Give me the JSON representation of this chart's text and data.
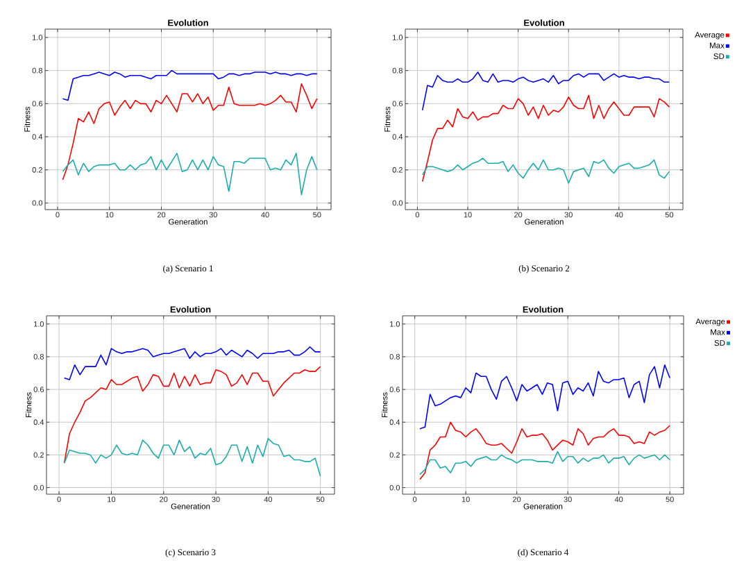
{
  "chart_data": [
    {
      "type": "line",
      "title": "Evolution",
      "xlabel": "Generation",
      "ylabel": "Fitness",
      "annotations": [
        "(a) Scenario 1"
      ],
      "x": [
        1,
        2,
        3,
        4,
        5,
        6,
        7,
        8,
        9,
        10,
        11,
        12,
        13,
        14,
        15,
        16,
        17,
        18,
        19,
        20,
        21,
        22,
        23,
        24,
        25,
        26,
        27,
        28,
        29,
        30,
        31,
        32,
        33,
        34,
        35,
        36,
        37,
        38,
        39,
        40,
        41,
        42,
        43,
        44,
        45,
        46,
        47,
        48,
        49,
        50
      ],
      "series": [
        {
          "color": "#ff0000",
          "values": [
            0.14,
            0.23,
            0.36,
            0.51,
            0.49,
            0.55,
            0.48,
            0.57,
            0.6,
            0.61,
            0.53,
            0.58,
            0.62,
            0.57,
            0.62,
            0.6,
            0.6,
            0.55,
            0.62,
            0.6,
            0.65,
            0.6,
            0.55,
            0.66,
            0.66,
            0.61,
            0.66,
            0.6,
            0.64,
            0.56,
            0.59,
            0.59,
            0.7,
            0.6,
            0.59,
            0.59,
            0.59,
            0.59,
            0.6,
            0.59,
            0.6,
            0.62,
            0.65,
            0.61,
            0.61,
            0.55,
            0.72,
            0.65,
            0.57,
            0.63
          ]
        },
        {
          "color": "#0000ff",
          "values": [
            0.63,
            0.62,
            0.75,
            0.76,
            0.77,
            0.77,
            0.78,
            0.79,
            0.78,
            0.77,
            0.79,
            0.78,
            0.76,
            0.77,
            0.77,
            0.77,
            0.76,
            0.75,
            0.77,
            0.77,
            0.77,
            0.8,
            0.78,
            0.78,
            0.78,
            0.78,
            0.78,
            0.78,
            0.78,
            0.78,
            0.75,
            0.76,
            0.78,
            0.78,
            0.77,
            0.78,
            0.78,
            0.79,
            0.79,
            0.79,
            0.78,
            0.79,
            0.78,
            0.78,
            0.77,
            0.78,
            0.78,
            0.77,
            0.78,
            0.78
          ]
        },
        {
          "color": "#1aadad",
          "values": [
            0.19,
            0.23,
            0.26,
            0.17,
            0.24,
            0.19,
            0.22,
            0.23,
            0.23,
            0.23,
            0.24,
            0.2,
            0.2,
            0.23,
            0.2,
            0.23,
            0.24,
            0.28,
            0.2,
            0.26,
            0.2,
            0.25,
            0.3,
            0.19,
            0.2,
            0.26,
            0.2,
            0.26,
            0.2,
            0.28,
            0.23,
            0.22,
            0.07,
            0.25,
            0.25,
            0.24,
            0.27,
            0.27,
            0.27,
            0.27,
            0.2,
            0.21,
            0.2,
            0.26,
            0.23,
            0.3,
            0.05,
            0.2,
            0.28,
            0.2
          ]
        }
      ],
      "xlim": [
        -2.4,
        52.7
      ],
      "ylim": [
        -0.04,
        1.05
      ],
      "xticks": [
        0,
        10,
        20,
        30,
        40,
        50
      ],
      "yticks": [
        {
          "value": 0,
          "label": "0.0"
        },
        {
          "value": 0.2,
          "label": "0.2"
        },
        {
          "value": 0.4,
          "label": "0.4"
        },
        {
          "value": 0.6,
          "label": "0.6"
        },
        {
          "value": 0.8,
          "label": "0.8"
        },
        {
          "value": 1,
          "label": "1.0"
        }
      ],
      "grid": true
    },
    {
      "type": "line",
      "title": "Evolution",
      "xlabel": "Generation",
      "ylabel": "Fitness",
      "annotations": [
        "(b) Scenario 2"
      ],
      "x": [
        1,
        2,
        3,
        4,
        5,
        6,
        7,
        8,
        9,
        10,
        11,
        12,
        13,
        14,
        15,
        16,
        17,
        18,
        19,
        20,
        21,
        22,
        23,
        24,
        25,
        26,
        27,
        28,
        29,
        30,
        31,
        32,
        33,
        34,
        35,
        36,
        37,
        38,
        39,
        40,
        41,
        42,
        43,
        44,
        45,
        46,
        47,
        48,
        49,
        50
      ],
      "series": [
        {
          "name": "Average",
          "color": "#ff0000",
          "values": [
            0.13,
            0.25,
            0.38,
            0.45,
            0.45,
            0.5,
            0.46,
            0.57,
            0.52,
            0.51,
            0.55,
            0.5,
            0.52,
            0.52,
            0.54,
            0.54,
            0.59,
            0.57,
            0.57,
            0.63,
            0.6,
            0.53,
            0.58,
            0.51,
            0.59,
            0.53,
            0.56,
            0.55,
            0.58,
            0.64,
            0.59,
            0.57,
            0.57,
            0.65,
            0.51,
            0.59,
            0.51,
            0.57,
            0.61,
            0.57,
            0.53,
            0.53,
            0.58,
            0.58,
            0.58,
            0.58,
            0.52,
            0.63,
            0.61,
            0.58
          ]
        },
        {
          "name": "Max",
          "color": "#0000ff",
          "values": [
            0.56,
            0.71,
            0.7,
            0.77,
            0.74,
            0.73,
            0.73,
            0.75,
            0.73,
            0.73,
            0.75,
            0.79,
            0.74,
            0.73,
            0.78,
            0.73,
            0.74,
            0.74,
            0.73,
            0.75,
            0.76,
            0.74,
            0.73,
            0.74,
            0.75,
            0.73,
            0.77,
            0.72,
            0.74,
            0.74,
            0.77,
            0.78,
            0.76,
            0.78,
            0.78,
            0.78,
            0.74,
            0.76,
            0.78,
            0.76,
            0.77,
            0.76,
            0.76,
            0.75,
            0.76,
            0.76,
            0.75,
            0.75,
            0.73,
            0.73
          ]
        },
        {
          "name": "SD",
          "color": "#1aadad",
          "values": [
            0.17,
            0.22,
            0.22,
            0.21,
            0.2,
            0.19,
            0.2,
            0.23,
            0.2,
            0.22,
            0.24,
            0.25,
            0.27,
            0.24,
            0.24,
            0.24,
            0.25,
            0.19,
            0.23,
            0.18,
            0.15,
            0.2,
            0.24,
            0.2,
            0.26,
            0.2,
            0.2,
            0.21,
            0.2,
            0.12,
            0.19,
            0.2,
            0.21,
            0.16,
            0.25,
            0.24,
            0.26,
            0.21,
            0.18,
            0.22,
            0.23,
            0.24,
            0.21,
            0.21,
            0.22,
            0.23,
            0.26,
            0.17,
            0.15,
            0.19
          ]
        }
      ],
      "xlim": [
        -2.4,
        52.7
      ],
      "ylim": [
        -0.04,
        1.05
      ],
      "xticks": [
        0,
        10,
        20,
        30,
        40,
        50
      ],
      "yticks": [
        {
          "value": 0,
          "label": "0.0"
        },
        {
          "value": 0.2,
          "label": "0.2"
        },
        {
          "value": 0.4,
          "label": "0.4"
        },
        {
          "value": 0.6,
          "label": "0.6"
        },
        {
          "value": 0.8,
          "label": "0.8"
        },
        {
          "value": 1,
          "label": "1.0"
        }
      ],
      "grid": true,
      "legend": "top right"
    },
    {
      "type": "line",
      "title": "Evolution",
      "xlabel": "Generation",
      "ylabel": "Fitness",
      "annotations": [
        "(c) Scenario 3"
      ],
      "x": [
        1,
        2,
        3,
        4,
        5,
        6,
        7,
        8,
        9,
        10,
        11,
        12,
        13,
        14,
        15,
        16,
        17,
        18,
        19,
        20,
        21,
        22,
        23,
        24,
        25,
        26,
        27,
        28,
        29,
        30,
        31,
        32,
        33,
        34,
        35,
        36,
        37,
        38,
        39,
        40,
        41,
        42,
        43,
        44,
        45,
        46,
        47,
        48,
        49,
        50
      ],
      "series": [
        {
          "color": "#ff0000",
          "values": [
            0.15,
            0.33,
            0.4,
            0.46,
            0.53,
            0.55,
            0.58,
            0.61,
            0.6,
            0.66,
            0.63,
            0.63,
            0.65,
            0.67,
            0.68,
            0.59,
            0.63,
            0.69,
            0.68,
            0.62,
            0.62,
            0.7,
            0.61,
            0.68,
            0.62,
            0.69,
            0.63,
            0.64,
            0.64,
            0.72,
            0.71,
            0.69,
            0.62,
            0.64,
            0.69,
            0.63,
            0.7,
            0.7,
            0.65,
            0.65,
            0.56,
            0.6,
            0.64,
            0.67,
            0.7,
            0.7,
            0.72,
            0.71,
            0.71,
            0.74
          ]
        },
        {
          "color": "#0000ff",
          "values": [
            0.67,
            0.66,
            0.75,
            0.69,
            0.74,
            0.74,
            0.74,
            0.81,
            0.75,
            0.85,
            0.83,
            0.82,
            0.83,
            0.83,
            0.84,
            0.85,
            0.84,
            0.8,
            0.81,
            0.82,
            0.82,
            0.83,
            0.84,
            0.85,
            0.79,
            0.83,
            0.8,
            0.82,
            0.82,
            0.83,
            0.85,
            0.81,
            0.84,
            0.82,
            0.8,
            0.84,
            0.82,
            0.79,
            0.82,
            0.82,
            0.82,
            0.83,
            0.83,
            0.84,
            0.81,
            0.81,
            0.83,
            0.86,
            0.83,
            0.83
          ]
        },
        {
          "color": "#1aadad",
          "values": [
            0.15,
            0.23,
            0.22,
            0.21,
            0.21,
            0.2,
            0.15,
            0.2,
            0.18,
            0.2,
            0.26,
            0.21,
            0.2,
            0.21,
            0.2,
            0.29,
            0.26,
            0.21,
            0.18,
            0.26,
            0.26,
            0.2,
            0.29,
            0.22,
            0.25,
            0.18,
            0.21,
            0.2,
            0.24,
            0.14,
            0.15,
            0.19,
            0.26,
            0.26,
            0.16,
            0.25,
            0.15,
            0.26,
            0.19,
            0.3,
            0.27,
            0.26,
            0.19,
            0.2,
            0.17,
            0.17,
            0.16,
            0.16,
            0.18,
            0.07
          ]
        }
      ],
      "xlim": [
        -2.4,
        52.7
      ],
      "ylim": [
        -0.04,
        1.05
      ],
      "xticks": [
        0,
        10,
        20,
        30,
        40,
        50
      ],
      "yticks": [
        {
          "value": 0,
          "label": "0.0"
        },
        {
          "value": 0.2,
          "label": "0.2"
        },
        {
          "value": 0.4,
          "label": "0.4"
        },
        {
          "value": 0.6,
          "label": "0.6"
        },
        {
          "value": 0.8,
          "label": "0.8"
        },
        {
          "value": 1,
          "label": "1.0"
        }
      ],
      "grid": true
    },
    {
      "type": "line",
      "title": "Evolution",
      "xlabel": "Generation",
      "ylabel": "Fitness",
      "annotations": [
        "(d) Scenario 4"
      ],
      "x": [
        1,
        2,
        3,
        4,
        5,
        6,
        7,
        8,
        9,
        10,
        11,
        12,
        13,
        14,
        15,
        16,
        17,
        18,
        19,
        20,
        21,
        22,
        23,
        24,
        25,
        26,
        27,
        28,
        29,
        30,
        31,
        32,
        33,
        34,
        35,
        36,
        37,
        38,
        39,
        40,
        41,
        42,
        43,
        44,
        45,
        46,
        47,
        48,
        49,
        50
      ],
      "series": [
        {
          "name": "Average",
          "color": "#ff0000",
          "values": [
            0.05,
            0.09,
            0.23,
            0.26,
            0.31,
            0.31,
            0.4,
            0.35,
            0.34,
            0.31,
            0.34,
            0.36,
            0.32,
            0.27,
            0.26,
            0.26,
            0.27,
            0.24,
            0.21,
            0.28,
            0.36,
            0.31,
            0.32,
            0.32,
            0.33,
            0.29,
            0.23,
            0.26,
            0.29,
            0.28,
            0.26,
            0.36,
            0.33,
            0.26,
            0.3,
            0.31,
            0.31,
            0.34,
            0.36,
            0.32,
            0.32,
            0.31,
            0.27,
            0.28,
            0.27,
            0.34,
            0.32,
            0.34,
            0.35,
            0.38
          ]
        },
        {
          "name": "Max",
          "color": "#0000ff",
          "values": [
            0.36,
            0.37,
            0.57,
            0.5,
            0.51,
            0.53,
            0.55,
            0.56,
            0.55,
            0.61,
            0.58,
            0.7,
            0.68,
            0.68,
            0.6,
            0.54,
            0.65,
            0.68,
            0.61,
            0.53,
            0.63,
            0.59,
            0.61,
            0.63,
            0.57,
            0.64,
            0.63,
            0.47,
            0.64,
            0.65,
            0.57,
            0.61,
            0.59,
            0.64,
            0.56,
            0.71,
            0.65,
            0.64,
            0.66,
            0.66,
            0.67,
            0.55,
            0.63,
            0.65,
            0.52,
            0.69,
            0.74,
            0.61,
            0.75,
            0.67
          ]
        },
        {
          "name": "SD",
          "color": "#1aadad",
          "values": [
            0.08,
            0.11,
            0.17,
            0.17,
            0.12,
            0.13,
            0.09,
            0.15,
            0.15,
            0.16,
            0.13,
            0.17,
            0.18,
            0.19,
            0.17,
            0.17,
            0.2,
            0.18,
            0.17,
            0.15,
            0.17,
            0.17,
            0.17,
            0.16,
            0.16,
            0.16,
            0.15,
            0.22,
            0.16,
            0.19,
            0.19,
            0.15,
            0.18,
            0.16,
            0.18,
            0.18,
            0.2,
            0.15,
            0.18,
            0.18,
            0.19,
            0.14,
            0.18,
            0.2,
            0.18,
            0.19,
            0.2,
            0.17,
            0.2,
            0.17
          ]
        }
      ],
      "xlim": [
        -2.4,
        52.7
      ],
      "ylim": [
        -0.04,
        1.05
      ],
      "xticks": [
        0,
        10,
        20,
        30,
        40,
        50
      ],
      "yticks": [
        {
          "value": 0,
          "label": "0.0"
        },
        {
          "value": 0.2,
          "label": "0.2"
        },
        {
          "value": 0.4,
          "label": "0.4"
        },
        {
          "value": 0.6,
          "label": "0.6"
        },
        {
          "value": 0.8,
          "label": "0.8"
        },
        {
          "value": 1,
          "label": "1.0"
        }
      ],
      "grid": true,
      "legend": "top right"
    }
  ]
}
